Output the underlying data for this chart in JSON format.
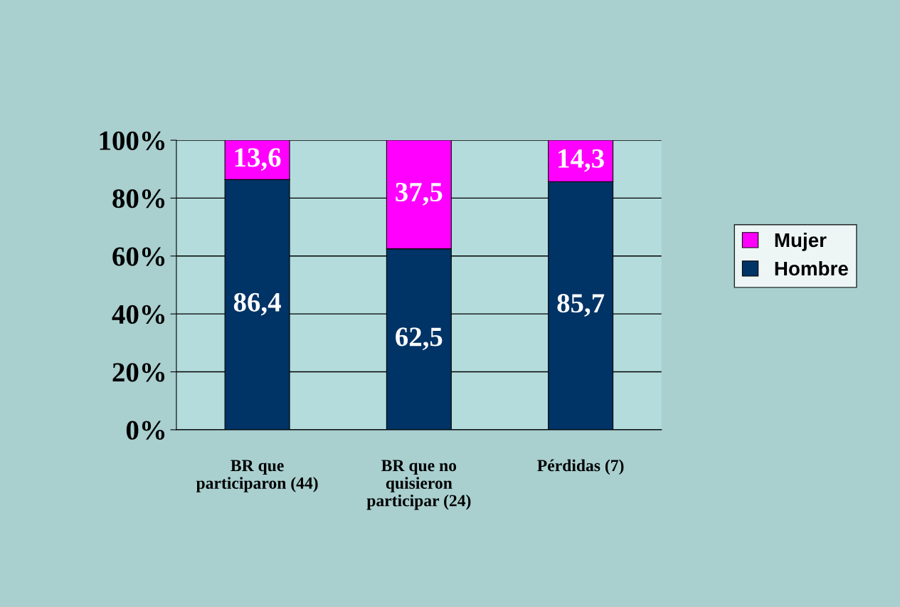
{
  "chart_data": {
    "type": "bar",
    "stacked": true,
    "categories": [
      "BR que\nparticiparon (44)",
      "BR que no\nquisieron\nparticipar (24)",
      "Pérdidas (7)"
    ],
    "series": [
      {
        "name": "Hombre",
        "color": "#003366",
        "values": [
          86.4,
          62.5,
          85.7
        ],
        "value_labels": [
          "86,4",
          "62,5",
          "85,7"
        ]
      },
      {
        "name": "Mujer",
        "color": "#ff00ff",
        "values": [
          13.6,
          37.5,
          14.3
        ],
        "value_labels": [
          "13,6",
          "37,5",
          "14,3"
        ]
      }
    ],
    "ylim": [
      0,
      100
    ],
    "yticks": [
      {
        "value": 0,
        "label": "0%"
      },
      {
        "value": 20,
        "label": "20%"
      },
      {
        "value": 40,
        "label": "40%"
      },
      {
        "value": 60,
        "label": "60%"
      },
      {
        "value": 80,
        "label": "80%"
      },
      {
        "value": 100,
        "label": "100%"
      }
    ],
    "grid": "y",
    "legend": "right"
  }
}
